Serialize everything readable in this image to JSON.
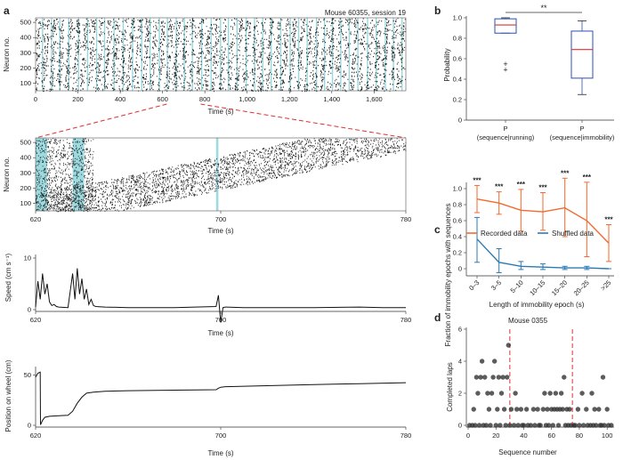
{
  "panel_labels": [
    "a",
    "b",
    "c",
    "d"
  ],
  "colors": {
    "raster": "#1a1a1a",
    "highlight": "#7ecfd6",
    "zoom_line": "#e03030",
    "recorded": "#f26a2e",
    "shuffled": "#2a7bb5",
    "box": "#2c4fb3",
    "median": "#e03030",
    "outlier": "#e03030",
    "dots": "#333333",
    "divider": "#e03030"
  },
  "chart_data": [
    {
      "id": "a1",
      "type": "heatmap",
      "title": "Mouse 60355, session 19",
      "xlabel": "Time (s)",
      "ylabel": "Neuron no.",
      "xlim": [
        0,
        1750
      ],
      "ylim": [
        50,
        530
      ],
      "xticks": [
        0,
        200,
        400,
        600,
        800,
        1000,
        1200,
        1400,
        1600
      ],
      "xtick_labels": [
        "0",
        "200",
        "400",
        "600",
        "800",
        "1,000",
        "1,200",
        "1,400",
        "1,600"
      ],
      "yticks": [
        100,
        200,
        300,
        400,
        500
      ],
      "ytick_labels": [
        "100",
        "200",
        "300",
        "400",
        "500"
      ],
      "zoom_window": [
        620,
        780
      ]
    },
    {
      "id": "a2",
      "type": "heatmap",
      "xlabel": "Time (s)",
      "ylabel": "Neuron no.",
      "xlim": [
        620,
        780
      ],
      "ylim": [
        50,
        530
      ],
      "xticks": [
        620,
        700,
        780
      ],
      "xtick_labels": [
        "620",
        "700",
        "780"
      ],
      "yticks": [
        100,
        200,
        300,
        400,
        500
      ],
      "ytick_labels": [
        "100",
        "200",
        "300",
        "400",
        "500"
      ],
      "highlight_spans": [
        [
          620,
          625
        ],
        [
          636,
          641
        ],
        [
          698,
          699
        ]
      ]
    },
    {
      "id": "a3",
      "type": "line",
      "xlabel": "Time (s)",
      "ylabel": "Speed (cm s⁻¹)",
      "xlim": [
        620,
        780
      ],
      "ylim": [
        0,
        10
      ],
      "xticks": [
        620,
        700,
        780
      ],
      "xtick_labels": [
        "620",
        "700",
        "780"
      ],
      "yticks": [
        0,
        10
      ],
      "ytick_labels": [
        "0",
        "10"
      ],
      "x": [
        620,
        621,
        622,
        623,
        624,
        625,
        626,
        627,
        628,
        629,
        630,
        634,
        636,
        637,
        638,
        639,
        640,
        641,
        642,
        643,
        644,
        645,
        646,
        650,
        660,
        680,
        698,
        699,
        700,
        701,
        702,
        710,
        740,
        760,
        770,
        780
      ],
      "y": [
        0.5,
        5.5,
        2,
        7,
        3,
        5,
        1.5,
        0.8,
        1,
        0.6,
        0.5,
        0.4,
        7,
        2,
        8,
        3,
        6,
        2,
        4,
        1,
        2,
        0.8,
        0.6,
        0.5,
        0.4,
        0.4,
        0.6,
        2.8,
        -2.5,
        0.4,
        0.5,
        0.4,
        0.4,
        0.5,
        0.4,
        0.4
      ]
    },
    {
      "id": "a4",
      "type": "line",
      "xlabel": "Time (s)",
      "ylabel": "Position on wheel (cm)",
      "xlim": [
        620,
        780
      ],
      "ylim": [
        0,
        55
      ],
      "xticks": [
        620,
        700,
        780
      ],
      "xtick_labels": [
        "620",
        "700",
        "780"
      ],
      "yticks": [
        0,
        50
      ],
      "ytick_labels": [
        "0",
        "50"
      ],
      "x": [
        620,
        621,
        622,
        622.1,
        623,
        624,
        626,
        630,
        634,
        636,
        638,
        640,
        642,
        645,
        650,
        660,
        680,
        698,
        699,
        700,
        702,
        720,
        740,
        760,
        780
      ],
      "y": [
        48,
        52,
        53,
        0.5,
        5,
        8,
        9,
        9.5,
        10,
        14,
        22,
        28,
        32,
        33,
        34,
        34.5,
        35,
        35.5,
        37,
        38,
        38.5,
        39.5,
        40.5,
        41.5,
        42.5
      ]
    },
    {
      "id": "b",
      "type": "box",
      "ylabel": "Probability",
      "ylim": [
        0,
        1.0
      ],
      "yticks": [
        0,
        0.2,
        0.4,
        0.6,
        0.8,
        1.0
      ],
      "ytick_labels": [
        "0",
        "0.2",
        "0.4",
        "0.6",
        "0.8",
        "1.0"
      ],
      "categories": [
        "P\n(sequence|running)",
        "P\n(sequence|immobility)"
      ],
      "boxes": [
        {
          "whisker_low": 0.85,
          "q1": 0.85,
          "median": 0.93,
          "q3": 0.99,
          "whisker_high": 1.0,
          "outliers": [
            0.55,
            0.49
          ]
        },
        {
          "whisker_low": 0.25,
          "q1": 0.41,
          "median": 0.69,
          "q3": 0.87,
          "whisker_high": 0.97,
          "outliers": []
        }
      ],
      "significance": "**"
    },
    {
      "id": "c",
      "type": "line",
      "xlabel": "Length of immobility epoch (s)",
      "ylabel": "Fraction of immobility epochs with sequences",
      "ylim": [
        -0.1,
        1.2
      ],
      "yticks": [
        0,
        0.2,
        0.4,
        0.6,
        0.8,
        1.0
      ],
      "ytick_labels": [
        "0",
        "0.2",
        "0.4",
        "0.6",
        "0.8",
        "1.0"
      ],
      "categories": [
        "0–3",
        "3–5",
        "5–10",
        "10–15",
        "15–20",
        "20–25",
        ">25"
      ],
      "series": [
        {
          "name": "Recorded data",
          "values": [
            0.87,
            0.82,
            0.73,
            0.71,
            0.76,
            0.6,
            0.32
          ],
          "err_low": [
            0.7,
            0.68,
            0.47,
            0.48,
            0.4,
            0.15,
            0.09
          ],
          "err_high": [
            1.04,
            0.96,
            0.99,
            0.95,
            1.13,
            1.08,
            0.55
          ]
        },
        {
          "name": "Shuffled data",
          "values": [
            0.37,
            0.08,
            0.03,
            0.02,
            0.01,
            0.01,
            0.0
          ],
          "err_low": [
            0.08,
            -0.05,
            -0.01,
            -0.01,
            -0.01,
            -0.01,
            0.0
          ],
          "err_high": [
            0.64,
            0.25,
            0.09,
            0.06,
            0.03,
            0.03,
            0.0
          ]
        }
      ],
      "annotations": [
        "***",
        "***",
        "***",
        "***",
        "***",
        "***",
        "***"
      ]
    },
    {
      "id": "d",
      "type": "scatter",
      "title": "Mouse 0355",
      "xlabel": "Sequence number",
      "ylabel": "Completed laps",
      "xlim": [
        0,
        105
      ],
      "ylim": [
        0,
        6
      ],
      "xticks": [
        0,
        20,
        40,
        60,
        80,
        100
      ],
      "xtick_labels": [
        "0",
        "20",
        "40",
        "60",
        "80",
        "100"
      ],
      "yticks": [
        0,
        2,
        4,
        6
      ],
      "ytick_labels": [
        "0",
        "2",
        "4",
        "6"
      ],
      "dividers": [
        30,
        75
      ],
      "points": [
        [
          1,
          0
        ],
        [
          3,
          0
        ],
        [
          4,
          1
        ],
        [
          5,
          0
        ],
        [
          6,
          3
        ],
        [
          7,
          2
        ],
        [
          8,
          0
        ],
        [
          9,
          3
        ],
        [
          10,
          4
        ],
        [
          11,
          0
        ],
        [
          12,
          3
        ],
        [
          13,
          0
        ],
        [
          14,
          2
        ],
        [
          15,
          1
        ],
        [
          16,
          0
        ],
        [
          17,
          2
        ],
        [
          18,
          3
        ],
        [
          19,
          4
        ],
        [
          20,
          0
        ],
        [
          21,
          1
        ],
        [
          22,
          3
        ],
        [
          23,
          0
        ],
        [
          24,
          2
        ],
        [
          25,
          3
        ],
        [
          26,
          1
        ],
        [
          27,
          0
        ],
        [
          28,
          3
        ],
        [
          29,
          5
        ],
        [
          30,
          0
        ],
        [
          31,
          1
        ],
        [
          33,
          0
        ],
        [
          34,
          2
        ],
        [
          35,
          1
        ],
        [
          36,
          0
        ],
        [
          38,
          1
        ],
        [
          39,
          0
        ],
        [
          40,
          0
        ],
        [
          42,
          1
        ],
        [
          43,
          0
        ],
        [
          45,
          0
        ],
        [
          47,
          1
        ],
        [
          48,
          0
        ],
        [
          50,
          1
        ],
        [
          51,
          0
        ],
        [
          52,
          0
        ],
        [
          54,
          1
        ],
        [
          55,
          2
        ],
        [
          56,
          0
        ],
        [
          57,
          1
        ],
        [
          58,
          0
        ],
        [
          59,
          2
        ],
        [
          60,
          1
        ],
        [
          61,
          0
        ],
        [
          62,
          1
        ],
        [
          63,
          2
        ],
        [
          64,
          1
        ],
        [
          65,
          0
        ],
        [
          66,
          1
        ],
        [
          67,
          2
        ],
        [
          68,
          1
        ],
        [
          69,
          3
        ],
        [
          70,
          0
        ],
        [
          71,
          1
        ],
        [
          72,
          0
        ],
        [
          73,
          1
        ],
        [
          74,
          0
        ],
        [
          76,
          0
        ],
        [
          77,
          0
        ],
        [
          79,
          1
        ],
        [
          80,
          0
        ],
        [
          82,
          2
        ],
        [
          83,
          0
        ],
        [
          85,
          1
        ],
        [
          86,
          0
        ],
        [
          88,
          0
        ],
        [
          89,
          2
        ],
        [
          90,
          0
        ],
        [
          91,
          1
        ],
        [
          92,
          0
        ],
        [
          94,
          1
        ],
        [
          95,
          0
        ],
        [
          96,
          0
        ],
        [
          97,
          3
        ],
        [
          98,
          0
        ],
        [
          100,
          1
        ],
        [
          101,
          0
        ],
        [
          103,
          0
        ]
      ]
    }
  ]
}
